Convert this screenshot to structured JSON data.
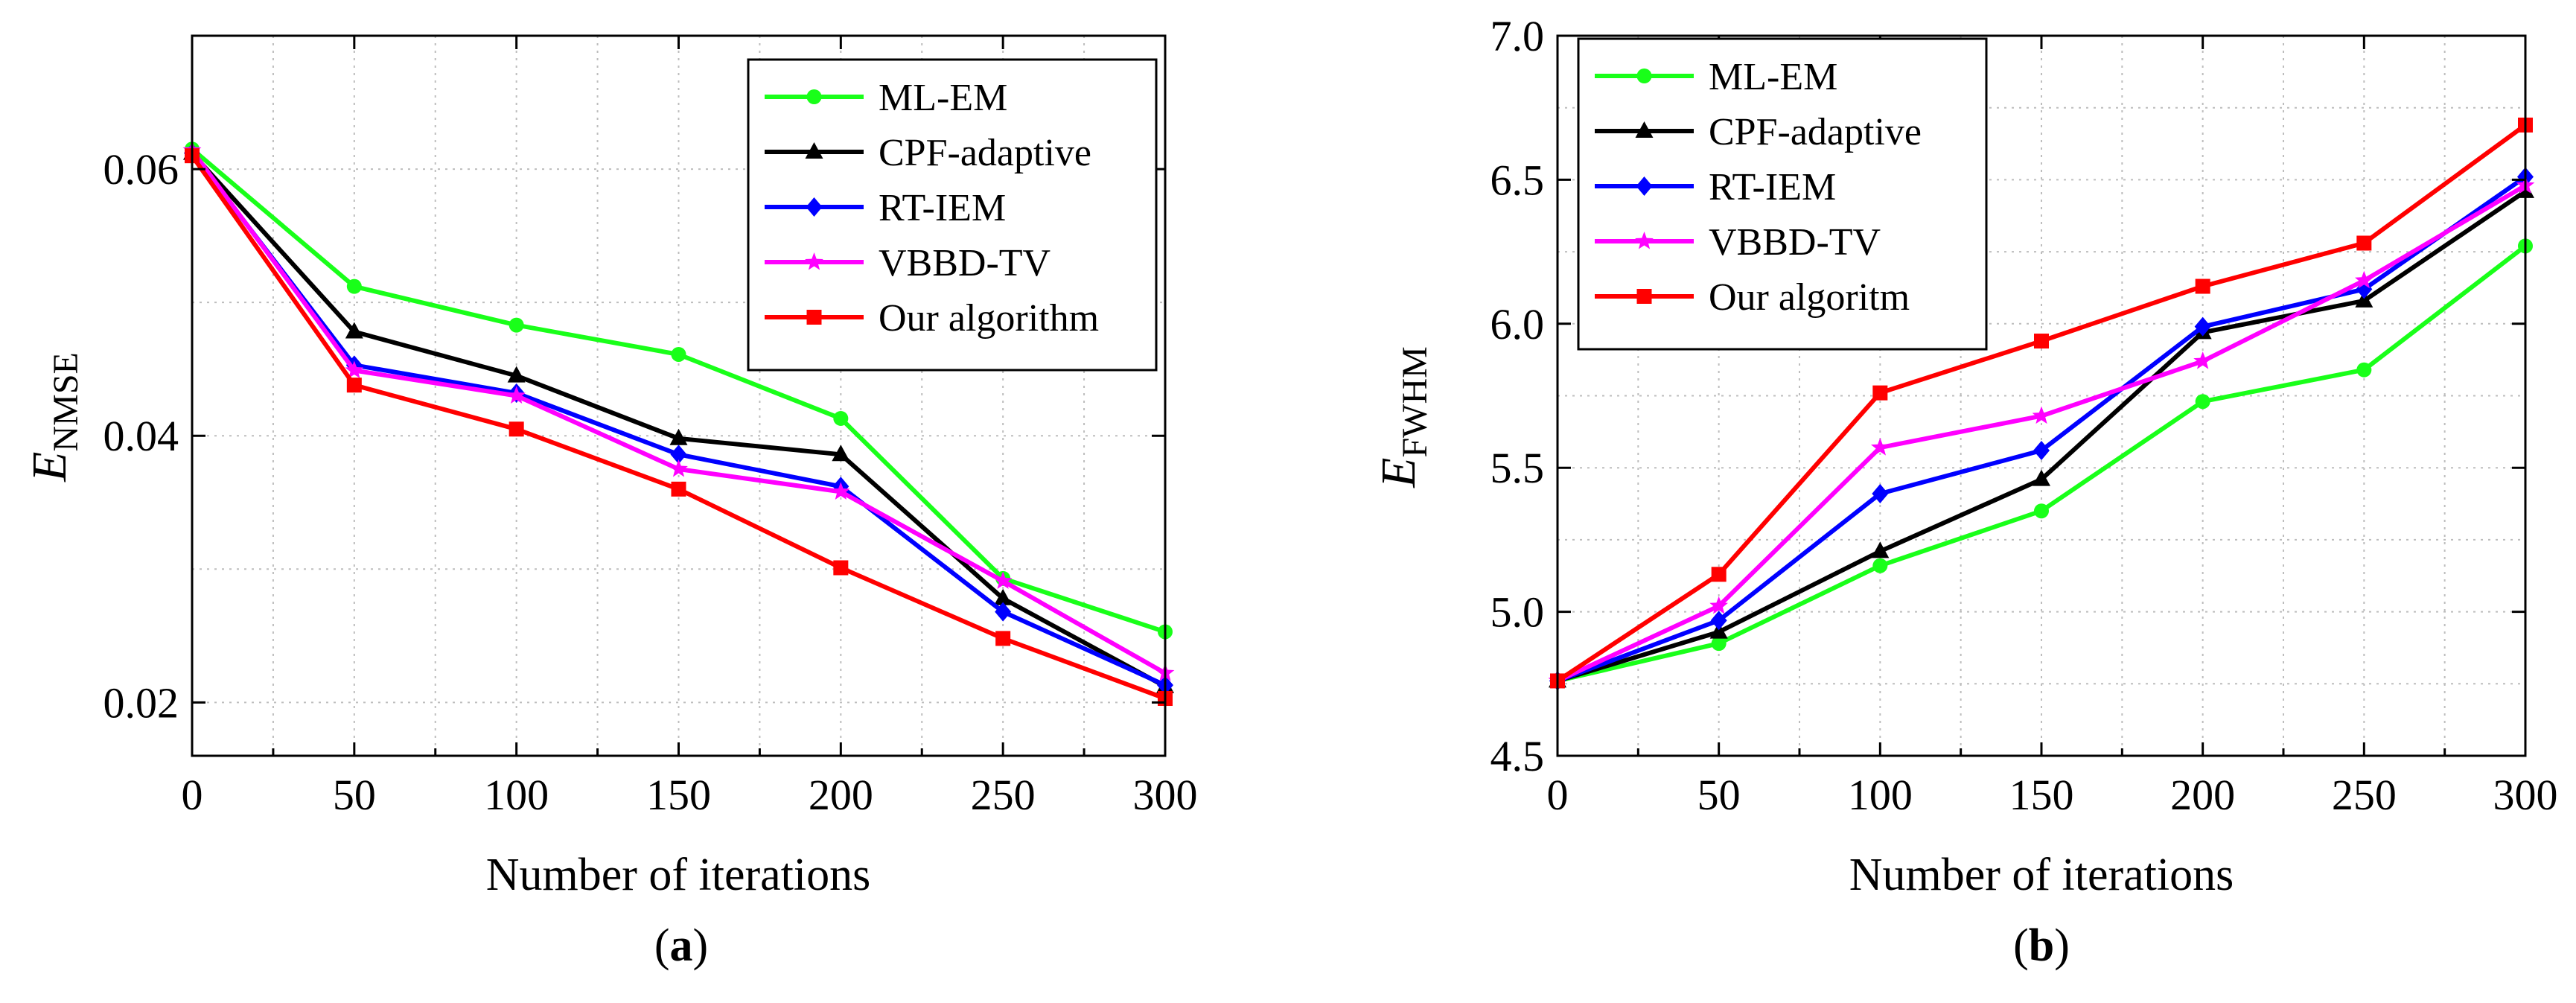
{
  "chart_data": [
    {
      "type": "line",
      "panel_label": "(a)",
      "panel_letter": "a",
      "xlabel": "Number of iterations",
      "ylabel_main": "E",
      "ylabel_sub": "NMSE",
      "xlim": [
        0,
        300
      ],
      "ylim": [
        0.016,
        0.07
      ],
      "xticks": [
        0,
        50,
        100,
        150,
        200,
        250,
        300
      ],
      "xtick_labels": [
        "0",
        "50",
        "100",
        "150",
        "200",
        "250",
        "300"
      ],
      "yticks": [
        0.02,
        0.04,
        0.06
      ],
      "ytick_labels": [
        "0.02",
        "0.04",
        "0.06"
      ],
      "x": [
        0,
        50,
        100,
        150,
        200,
        250,
        300
      ],
      "legend_position": "top-right",
      "series": [
        {
          "name": "ML-EM",
          "color": "#19ff19",
          "marker": "circle",
          "values": [
            0.0615,
            0.0512,
            0.0483,
            0.0461,
            0.0413,
            0.0293,
            0.0253
          ]
        },
        {
          "name": "CPF-adaptive",
          "color": "#000000",
          "marker": "triangle",
          "values": [
            0.0612,
            0.0478,
            0.0445,
            0.0398,
            0.0386,
            0.0278,
            0.0212
          ]
        },
        {
          "name": "RT-IEM",
          "color": "#0000ff",
          "marker": "diamond",
          "values": [
            0.0612,
            0.0453,
            0.0432,
            0.0386,
            0.0362,
            0.0268,
            0.0213
          ]
        },
        {
          "name": "VBBD-TV",
          "color": "#ff00ff",
          "marker": "star",
          "values": [
            0.0614,
            0.0449,
            0.043,
            0.0375,
            0.0358,
            0.0291,
            0.0222
          ]
        },
        {
          "name": "Our algorithm",
          "color": "#ff0000",
          "marker": "square",
          "values": [
            0.061,
            0.0438,
            0.0405,
            0.036,
            0.0301,
            0.0248,
            0.0203
          ]
        }
      ]
    },
    {
      "type": "line",
      "panel_label": "(b)",
      "panel_letter": "b",
      "xlabel": "Number of iterations",
      "ylabel_main": "E",
      "ylabel_sub": "FWHM",
      "xlim": [
        0,
        300
      ],
      "ylim": [
        4.5,
        7.0
      ],
      "xticks": [
        0,
        50,
        100,
        150,
        200,
        250,
        300
      ],
      "xtick_labels": [
        "0",
        "50",
        "100",
        "150",
        "200",
        "250",
        "300"
      ],
      "yticks": [
        4.5,
        5.0,
        5.5,
        6.0,
        6.5,
        7.0
      ],
      "ytick_labels": [
        "4.5",
        "5.0",
        "5.5",
        "6.0",
        "6.5",
        "7.0"
      ],
      "x": [
        0,
        50,
        100,
        150,
        200,
        250,
        300
      ],
      "legend_position": "top-left",
      "series": [
        {
          "name": "ML-EM",
          "color": "#19ff19",
          "marker": "circle",
          "values": [
            4.76,
            4.89,
            5.16,
            5.35,
            5.73,
            5.84,
            6.27
          ]
        },
        {
          "name": "CPF-adaptive",
          "color": "#000000",
          "marker": "triangle",
          "values": [
            4.76,
            4.93,
            5.21,
            5.46,
            5.97,
            6.08,
            6.46
          ]
        },
        {
          "name": "RT-IEM",
          "color": "#0000ff",
          "marker": "diamond",
          "values": [
            4.76,
            4.97,
            5.41,
            5.56,
            5.99,
            6.12,
            6.51
          ]
        },
        {
          "name": "VBBD-TV",
          "color": "#ff00ff",
          "marker": "star",
          "values": [
            4.76,
            5.02,
            5.57,
            5.68,
            5.87,
            6.15,
            6.48
          ]
        },
        {
          "name": "Our algoritm",
          "color": "#ff0000",
          "marker": "square",
          "values": [
            4.76,
            5.13,
            5.76,
            5.94,
            6.13,
            6.28,
            6.69
          ]
        }
      ]
    }
  ]
}
